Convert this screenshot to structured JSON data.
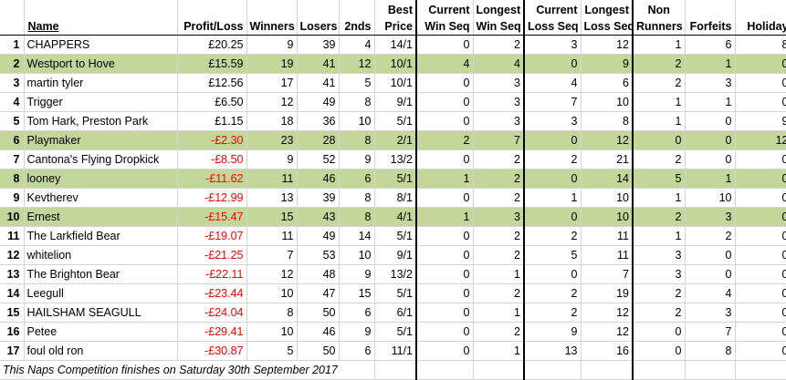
{
  "headers": {
    "name": "Name",
    "profit_loss": "Profit/Loss",
    "winners": "Winners",
    "losers": "Losers",
    "seconds": "2nds",
    "best_price": [
      "Best",
      "Price"
    ],
    "current_win_seq": [
      "Current",
      "Win Seq"
    ],
    "longest_win_seq": [
      "Longest",
      "Win Seq"
    ],
    "current_loss_seq": [
      "Current",
      "Loss Seq"
    ],
    "longest_loss_seq": [
      "Longest",
      "Loss Seq"
    ],
    "non_runners": [
      "Non",
      "Runners"
    ],
    "forfeits": "Forfeits",
    "holiday": "Holiday"
  },
  "rows": [
    {
      "idx": "1",
      "name": "CHAPPERS",
      "pl": "£20.25",
      "neg": false,
      "winners": "9",
      "losers": "39",
      "seconds": "4",
      "best": "14/1",
      "cws": "0",
      "lws": "2",
      "cls": "3",
      "lls": "12",
      "nr": "1",
      "ff": "6",
      "hol": "8",
      "hl": false
    },
    {
      "idx": "2",
      "name": "Westport to Hove",
      "pl": "£15.59",
      "neg": false,
      "winners": "19",
      "losers": "41",
      "seconds": "12",
      "best": "10/1",
      "cws": "4",
      "lws": "4",
      "cls": "0",
      "lls": "9",
      "nr": "2",
      "ff": "1",
      "hol": "0",
      "hl": true
    },
    {
      "idx": "3",
      "name": "martin tyler",
      "pl": "£12.56",
      "neg": false,
      "winners": "17",
      "losers": "41",
      "seconds": "5",
      "best": "10/1",
      "cws": "0",
      "lws": "3",
      "cls": "4",
      "lls": "6",
      "nr": "2",
      "ff": "3",
      "hol": "0",
      "hl": false
    },
    {
      "idx": "4",
      "name": "Trigger",
      "pl": "£6.50",
      "neg": false,
      "winners": "12",
      "losers": "49",
      "seconds": "8",
      "best": "9/1",
      "cws": "0",
      "lws": "3",
      "cls": "7",
      "lls": "10",
      "nr": "1",
      "ff": "1",
      "hol": "0",
      "hl": false
    },
    {
      "idx": "5",
      "name": "Tom Hark, Preston Park",
      "pl": "£1.15",
      "neg": false,
      "winners": "18",
      "losers": "36",
      "seconds": "10",
      "best": "5/1",
      "cws": "0",
      "lws": "3",
      "cls": "3",
      "lls": "8",
      "nr": "1",
      "ff": "0",
      "hol": "9",
      "hl": false
    },
    {
      "idx": "6",
      "name": "Playmaker",
      "pl": "-£2.30",
      "neg": true,
      "winners": "23",
      "losers": "28",
      "seconds": "8",
      "best": "2/1",
      "cws": "2",
      "lws": "7",
      "cls": "0",
      "lls": "12",
      "nr": "0",
      "ff": "0",
      "hol": "12",
      "hl": true
    },
    {
      "idx": "7",
      "name": "Cantona's Flying Dropkick",
      "pl": "-£8.50",
      "neg": true,
      "winners": "9",
      "losers": "52",
      "seconds": "9",
      "best": "13/2",
      "cws": "0",
      "lws": "2",
      "cls": "2",
      "lls": "21",
      "nr": "2",
      "ff": "0",
      "hol": "0",
      "hl": false
    },
    {
      "idx": "8",
      "name": "looney",
      "pl": "-£11.62",
      "neg": true,
      "winners": "11",
      "losers": "46",
      "seconds": "6",
      "best": "5/1",
      "cws": "1",
      "lws": "2",
      "cls": "0",
      "lls": "14",
      "nr": "5",
      "ff": "1",
      "hol": "0",
      "hl": true
    },
    {
      "idx": "9",
      "name": "Kevtherev",
      "pl": "-£12.99",
      "neg": true,
      "winners": "13",
      "losers": "39",
      "seconds": "8",
      "best": "8/1",
      "cws": "0",
      "lws": "2",
      "cls": "1",
      "lls": "10",
      "nr": "1",
      "ff": "10",
      "hol": "0",
      "hl": false
    },
    {
      "idx": "10",
      "name": "Ernest",
      "pl": "-£15.47",
      "neg": true,
      "winners": "15",
      "losers": "43",
      "seconds": "8",
      "best": "4/1",
      "cws": "1",
      "lws": "3",
      "cls": "0",
      "lls": "10",
      "nr": "2",
      "ff": "3",
      "hol": "0",
      "hl": true
    },
    {
      "idx": "11",
      "name": "The Larkfield Bear",
      "pl": "-£19.07",
      "neg": true,
      "winners": "11",
      "losers": "49",
      "seconds": "14",
      "best": "5/1",
      "cws": "0",
      "lws": "2",
      "cls": "2",
      "lls": "11",
      "nr": "1",
      "ff": "2",
      "hol": "0",
      "hl": false
    },
    {
      "idx": "12",
      "name": "whitelion",
      "pl": "-£21.25",
      "neg": true,
      "winners": "7",
      "losers": "53",
      "seconds": "10",
      "best": "9/1",
      "cws": "0",
      "lws": "2",
      "cls": "5",
      "lls": "11",
      "nr": "3",
      "ff": "0",
      "hol": "0",
      "hl": false
    },
    {
      "idx": "13",
      "name": "The Brighton Bear",
      "pl": "-£22.11",
      "neg": true,
      "winners": "12",
      "losers": "48",
      "seconds": "9",
      "best": "13/2",
      "cws": "0",
      "lws": "1",
      "cls": "0",
      "lls": "7",
      "nr": "3",
      "ff": "0",
      "hol": "0",
      "hl": false
    },
    {
      "idx": "14",
      "name": "Leegull",
      "pl": "-£23.44",
      "neg": true,
      "winners": "10",
      "losers": "47",
      "seconds": "15",
      "best": "5/1",
      "cws": "0",
      "lws": "2",
      "cls": "2",
      "lls": "19",
      "nr": "2",
      "ff": "4",
      "hol": "0",
      "hl": false
    },
    {
      "idx": "15",
      "name": "HAILSHAM SEAGULL",
      "pl": "-£24.04",
      "neg": true,
      "winners": "8",
      "losers": "50",
      "seconds": "6",
      "best": "6/1",
      "cws": "0",
      "lws": "1",
      "cls": "2",
      "lls": "12",
      "nr": "2",
      "ff": "3",
      "hol": "0",
      "hl": false
    },
    {
      "idx": "16",
      "name": "Petee",
      "pl": "-£29.41",
      "neg": true,
      "winners": "10",
      "losers": "46",
      "seconds": "9",
      "best": "5/1",
      "cws": "0",
      "lws": "2",
      "cls": "9",
      "lls": "12",
      "nr": "0",
      "ff": "7",
      "hol": "0",
      "hl": false
    },
    {
      "idx": "17",
      "name": "foul old ron",
      "pl": "-£30.87",
      "neg": true,
      "winners": "5",
      "losers": "50",
      "seconds": "6",
      "best": "11/1",
      "cws": "0",
      "lws": "1",
      "cls": "13",
      "lls": "16",
      "nr": "0",
      "ff": "8",
      "hol": "0",
      "hl": false
    }
  ],
  "footer": "This Naps Competition finishes on Saturday 30th September 2017",
  "colors": {
    "highlight": "#c4d79b",
    "negative": "#ff0000",
    "gridline": "#d4d4d4"
  }
}
